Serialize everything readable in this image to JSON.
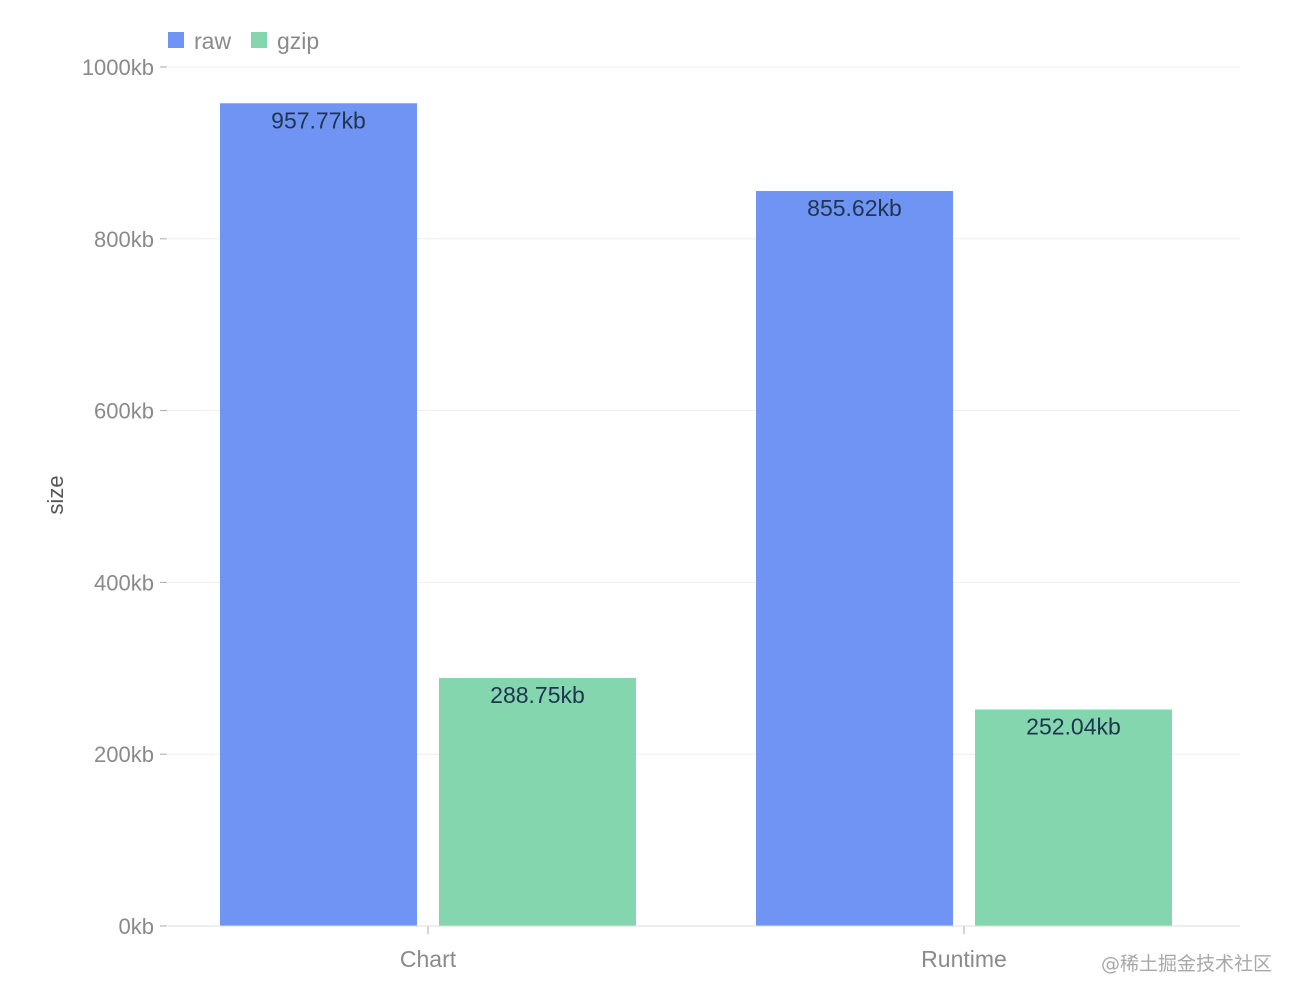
{
  "colors": {
    "raw": "#6f94f3",
    "gzip": "#84d6ae",
    "grid": "#eeeeee",
    "axis": "#dddddd"
  },
  "legend": {
    "placement": "top-left",
    "items": [
      {
        "name": "raw",
        "color": "#6f94f3"
      },
      {
        "name": "gzip",
        "color": "#84d6ae"
      }
    ]
  },
  "watermark": "@稀土掘金技术社区",
  "chart_data": {
    "type": "bar",
    "title": "",
    "xlabel": "",
    "ylabel": "size",
    "ylim": [
      0,
      1000
    ],
    "y_ticks": [
      0,
      200,
      400,
      600,
      800,
      1000
    ],
    "y_tick_suffix": "kb",
    "grid": true,
    "categories": [
      "Chart",
      "Runtime"
    ],
    "series": [
      {
        "name": "raw",
        "color": "#6f94f3",
        "values": [
          957.77,
          855.62
        ],
        "labels": [
          "957.77kb",
          "855.62kb"
        ]
      },
      {
        "name": "gzip",
        "color": "#84d6ae",
        "values": [
          288.75,
          252.04
        ],
        "labels": [
          "288.75kb",
          "252.04kb"
        ]
      }
    ]
  }
}
